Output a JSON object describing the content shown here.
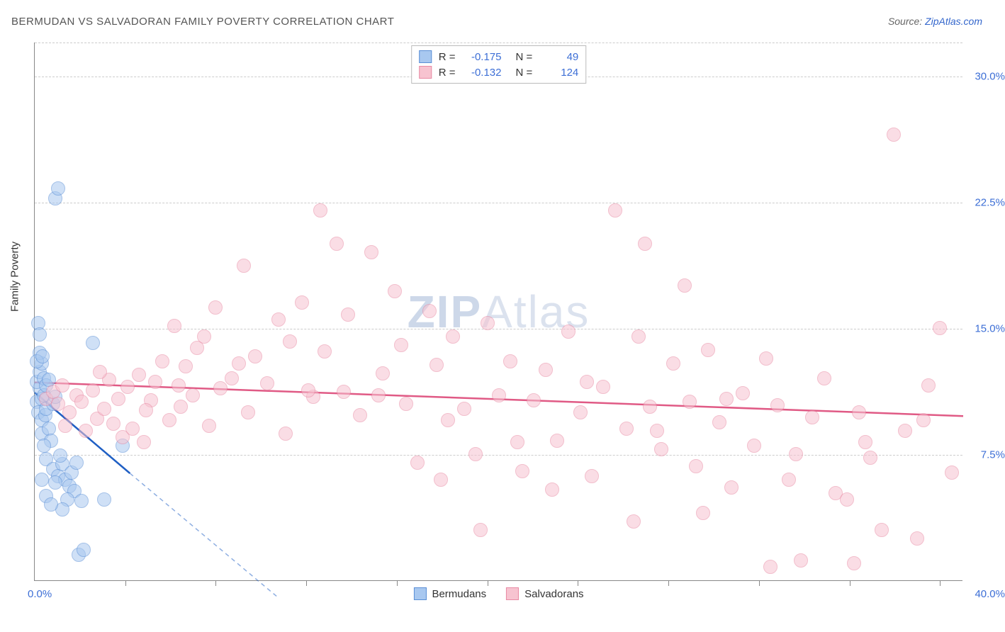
{
  "title": "BERMUDAN VS SALVADORAN FAMILY POVERTY CORRELATION CHART",
  "source_prefix": "Source: ",
  "source_link": "ZipAtlas.com",
  "watermark_bold": "ZIP",
  "watermark_rest": "Atlas",
  "y_axis_label": "Family Poverty",
  "chart": {
    "type": "scatter",
    "xlim": [
      0,
      40
    ],
    "ylim": [
      0,
      32
    ],
    "x_label_min": "0.0%",
    "x_label_max": "40.0%",
    "y_ticks": [
      {
        "v": 7.5,
        "label": "7.5%"
      },
      {
        "v": 15.0,
        "label": "15.0%"
      },
      {
        "v": 22.5,
        "label": "22.5%"
      },
      {
        "v": 30.0,
        "label": "30.0%"
      }
    ],
    "x_tick_positions": [
      3.9,
      7.8,
      11.7,
      15.6,
      19.5,
      23.4,
      27.3,
      31.2,
      35.1,
      39.0
    ],
    "background_color": "#ffffff",
    "grid_color": "#cccccc",
    "axis_color": "#888888",
    "tick_label_color": "#3d6fd6",
    "marker_radius": 10,
    "marker_opacity": 0.55,
    "series": [
      {
        "name": "Bermudans",
        "fill": "#a8c8f0",
        "stroke": "#5a8fd6",
        "trend_color": "#1f5fc4",
        "trend_dash_ext": true,
        "R": "-0.175",
        "N": "49",
        "trend": {
          "x1": 0,
          "y1": 11.2,
          "x2": 4.1,
          "y2": 6.4,
          "x2_ext": 10.5,
          "y2_ext": -1.0
        },
        "points": [
          [
            0.1,
            10.6
          ],
          [
            0.2,
            11.4
          ],
          [
            0.15,
            10.0
          ],
          [
            0.3,
            9.5
          ],
          [
            0.1,
            11.8
          ],
          [
            0.2,
            12.4
          ],
          [
            0.3,
            10.8
          ],
          [
            0.4,
            11.0
          ],
          [
            0.45,
            9.8
          ],
          [
            0.5,
            10.2
          ],
          [
            0.3,
            8.7
          ],
          [
            0.6,
            9.0
          ],
          [
            0.7,
            8.3
          ],
          [
            0.8,
            10.5
          ],
          [
            0.9,
            10.9
          ],
          [
            0.3,
            12.9
          ],
          [
            0.2,
            13.5
          ],
          [
            0.4,
            12.0
          ],
          [
            0.5,
            11.6
          ],
          [
            0.6,
            11.9
          ],
          [
            0.1,
            13.0
          ],
          [
            0.15,
            15.3
          ],
          [
            0.2,
            14.6
          ],
          [
            0.35,
            13.3
          ],
          [
            0.9,
            22.7
          ],
          [
            1.0,
            23.3
          ],
          [
            2.5,
            14.1
          ],
          [
            0.5,
            7.2
          ],
          [
            0.8,
            6.6
          ],
          [
            1.0,
            6.2
          ],
          [
            1.2,
            6.9
          ],
          [
            1.3,
            6.0
          ],
          [
            1.5,
            5.6
          ],
          [
            1.6,
            6.4
          ],
          [
            1.7,
            5.3
          ],
          [
            1.8,
            7.0
          ],
          [
            2.0,
            4.7
          ],
          [
            1.4,
            4.8
          ],
          [
            1.2,
            4.2
          ],
          [
            1.9,
            1.5
          ],
          [
            2.1,
            1.8
          ],
          [
            0.5,
            5.0
          ],
          [
            0.7,
            4.5
          ],
          [
            0.9,
            5.8
          ],
          [
            1.1,
            7.4
          ],
          [
            3.0,
            4.8
          ],
          [
            0.3,
            6.0
          ],
          [
            0.4,
            8.0
          ],
          [
            3.8,
            8.0
          ]
        ]
      },
      {
        "name": "Salvadorans",
        "fill": "#f7c3d0",
        "stroke": "#e88aa4",
        "trend_color": "#e05a85",
        "trend_dash_ext": false,
        "R": "-0.132",
        "N": "124",
        "trend": {
          "x1": 0,
          "y1": 11.8,
          "x2": 40,
          "y2": 9.8
        },
        "points": [
          [
            0.5,
            10.8
          ],
          [
            0.8,
            11.2
          ],
          [
            1.0,
            10.5
          ],
          [
            1.2,
            11.6
          ],
          [
            1.5,
            10.0
          ],
          [
            1.8,
            11.0
          ],
          [
            2.0,
            10.6
          ],
          [
            2.2,
            8.9
          ],
          [
            2.5,
            11.3
          ],
          [
            2.7,
            9.6
          ],
          [
            3.0,
            10.2
          ],
          [
            3.2,
            11.9
          ],
          [
            3.4,
            9.3
          ],
          [
            3.6,
            10.8
          ],
          [
            3.8,
            8.5
          ],
          [
            4.0,
            11.5
          ],
          [
            4.2,
            9.0
          ],
          [
            4.5,
            12.2
          ],
          [
            4.7,
            8.2
          ],
          [
            5.0,
            10.7
          ],
          [
            5.2,
            11.8
          ],
          [
            5.5,
            13.0
          ],
          [
            5.8,
            9.5
          ],
          [
            6.0,
            15.1
          ],
          [
            6.3,
            10.3
          ],
          [
            6.5,
            12.7
          ],
          [
            6.8,
            11.0
          ],
          [
            7.0,
            13.8
          ],
          [
            7.3,
            14.5
          ],
          [
            7.5,
            9.2
          ],
          [
            7.8,
            16.2
          ],
          [
            8.0,
            11.4
          ],
          [
            8.5,
            12.0
          ],
          [
            9.0,
            18.7
          ],
          [
            9.2,
            10.0
          ],
          [
            9.5,
            13.3
          ],
          [
            10.0,
            11.7
          ],
          [
            10.5,
            15.5
          ],
          [
            10.8,
            8.7
          ],
          [
            11.0,
            14.2
          ],
          [
            11.5,
            16.5
          ],
          [
            12.0,
            10.9
          ],
          [
            12.3,
            22.0
          ],
          [
            12.5,
            13.6
          ],
          [
            13.0,
            20.0
          ],
          [
            13.3,
            11.2
          ],
          [
            13.5,
            15.8
          ],
          [
            14.0,
            9.8
          ],
          [
            14.5,
            19.5
          ],
          [
            15.0,
            12.3
          ],
          [
            15.5,
            17.2
          ],
          [
            15.8,
            14.0
          ],
          [
            16.0,
            10.5
          ],
          [
            16.5,
            7.0
          ],
          [
            17.0,
            16.0
          ],
          [
            17.3,
            12.8
          ],
          [
            17.5,
            6.0
          ],
          [
            18.0,
            14.5
          ],
          [
            18.5,
            10.2
          ],
          [
            19.0,
            7.5
          ],
          [
            19.5,
            15.3
          ],
          [
            20.0,
            11.0
          ],
          [
            20.5,
            13.0
          ],
          [
            21.0,
            6.5
          ],
          [
            21.5,
            10.7
          ],
          [
            22.0,
            12.5
          ],
          [
            22.5,
            8.3
          ],
          [
            23.0,
            14.8
          ],
          [
            23.5,
            10.0
          ],
          [
            24.0,
            6.2
          ],
          [
            24.5,
            11.5
          ],
          [
            25.0,
            22.0
          ],
          [
            25.5,
            9.0
          ],
          [
            26.0,
            14.5
          ],
          [
            26.3,
            20.0
          ],
          [
            26.5,
            10.3
          ],
          [
            27.0,
            7.8
          ],
          [
            27.5,
            12.9
          ],
          [
            28.0,
            17.5
          ],
          [
            28.2,
            10.6
          ],
          [
            28.5,
            6.8
          ],
          [
            29.0,
            13.7
          ],
          [
            29.5,
            9.4
          ],
          [
            30.0,
            5.5
          ],
          [
            30.5,
            11.1
          ],
          [
            31.0,
            8.0
          ],
          [
            31.5,
            13.2
          ],
          [
            31.7,
            0.8
          ],
          [
            32.0,
            10.4
          ],
          [
            32.5,
            6.0
          ],
          [
            33.0,
            1.2
          ],
          [
            33.5,
            9.7
          ],
          [
            34.0,
            12.0
          ],
          [
            34.5,
            5.2
          ],
          [
            35.0,
            4.8
          ],
          [
            35.3,
            1.0
          ],
          [
            35.5,
            10.0
          ],
          [
            36.0,
            7.3
          ],
          [
            36.5,
            3.0
          ],
          [
            37.0,
            26.5
          ],
          [
            37.5,
            8.9
          ],
          [
            38.0,
            2.5
          ],
          [
            38.5,
            11.6
          ],
          [
            39.0,
            15.0
          ],
          [
            39.5,
            6.4
          ],
          [
            1.3,
            9.2
          ],
          [
            2.8,
            12.4
          ],
          [
            4.8,
            10.1
          ],
          [
            6.2,
            11.6
          ],
          [
            8.8,
            12.9
          ],
          [
            11.8,
            11.3
          ],
          [
            14.8,
            11.0
          ],
          [
            17.8,
            9.5
          ],
          [
            20.8,
            8.2
          ],
          [
            23.8,
            11.8
          ],
          [
            26.8,
            8.9
          ],
          [
            29.8,
            10.8
          ],
          [
            32.8,
            7.5
          ],
          [
            35.8,
            8.2
          ],
          [
            38.3,
            9.5
          ],
          [
            19.2,
            3.0
          ],
          [
            22.3,
            5.4
          ],
          [
            25.8,
            3.5
          ],
          [
            28.8,
            4.0
          ]
        ]
      }
    ]
  },
  "corr_legend_labels": {
    "R": "R =",
    "N": "N ="
  }
}
